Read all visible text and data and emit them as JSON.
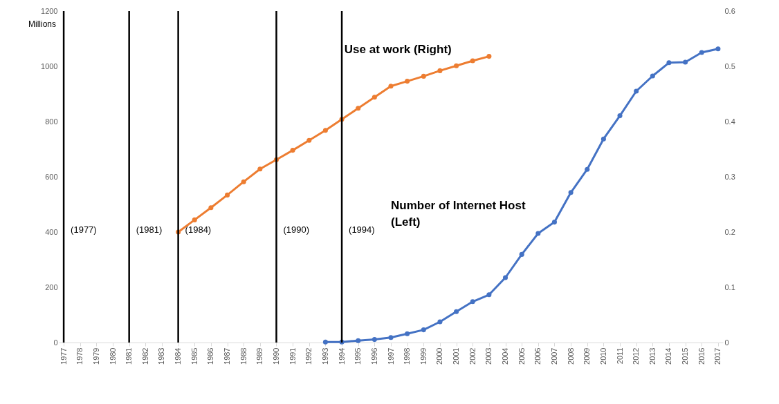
{
  "chart_data": {
    "type": "line",
    "ylabel": "Millions",
    "categories": [
      "1977",
      "1978",
      "1979",
      "1980",
      "1981",
      "1982",
      "1983",
      "1984",
      "1985",
      "1986",
      "1987",
      "1988",
      "1989",
      "1990",
      "1991",
      "1992",
      "1993",
      "1994",
      "1995",
      "1996",
      "1997",
      "1998",
      "1999",
      "2000",
      "2001",
      "2002",
      "2003",
      "2004",
      "2005",
      "2006",
      "2007",
      "2008",
      "2009",
      "2010",
      "2011",
      "2012",
      "2013",
      "2014",
      "2015",
      "2016",
      "2017"
    ],
    "series": [
      {
        "color": "#4472c4",
        "values": [
          null,
          null,
          null,
          null,
          null,
          null,
          null,
          null,
          null,
          null,
          null,
          null,
          null,
          null,
          null,
          null,
          2,
          2,
          7,
          11,
          18,
          32,
          46,
          75,
          112,
          148,
          173,
          235,
          319,
          395,
          436,
          543,
          627,
          737,
          821,
          910,
          965,
          1013,
          1015,
          1050,
          1063
        ]
      },
      {
        "color": "#ed7d31",
        "axis": "y2",
        "values": [
          null,
          null,
          null,
          null,
          null,
          null,
          null,
          0.2,
          0.222,
          0.244,
          0.267,
          0.291,
          0.314,
          0.331,
          0.348,
          0.366,
          0.384,
          0.404,
          0.424,
          0.444,
          0.464,
          0.473,
          0.482,
          0.492,
          0.501,
          0.51,
          0.518,
          null,
          null,
          null,
          null,
          null,
          null,
          null,
          null,
          null,
          null,
          null,
          null,
          null,
          null
        ]
      }
    ],
    "ylim": [
      0,
      1200
    ],
    "yticks": [
      0,
      200,
      400,
      600,
      800,
      1000,
      1200
    ],
    "y2lim": [
      0,
      0.6
    ],
    "y2ticks": [
      0,
      0.1,
      0.2,
      0.3,
      0.4,
      0.5,
      0.6
    ],
    "ref_lines": [
      {
        "axis": "x",
        "value": "1977",
        "label": "(1977)",
        "color": "#000000"
      },
      {
        "axis": "x",
        "value": "1981",
        "label": "(1981)",
        "color": "#000000"
      },
      {
        "axis": "x",
        "value": "1984",
        "label": "(1984)",
        "color": "#000000"
      },
      {
        "axis": "x",
        "value": "1990",
        "label": "(1990)",
        "color": "#000000"
      },
      {
        "axis": "x",
        "value": "1994",
        "label": "(1994)",
        "color": "#000000"
      }
    ],
    "annotations": [
      "Use at work (Right)",
      "Number of Internet Host (Left)"
    ],
    "grid": false,
    "marker": "circle",
    "line_style": "solid"
  }
}
